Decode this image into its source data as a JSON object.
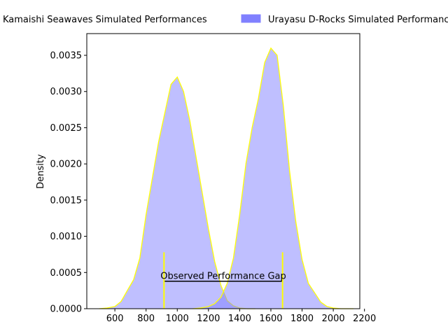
{
  "chart_data": {
    "type": "area",
    "title": "",
    "xlabel": "",
    "ylabel": "Density",
    "xlim": [
      420,
      2170
    ],
    "ylim": [
      0,
      0.0038
    ],
    "x_ticks": [
      600,
      800,
      1000,
      1200,
      1400,
      1600,
      1800,
      2000,
      2200
    ],
    "x_tick_labels": [
      "600",
      "800",
      "1000",
      "1200",
      "1400",
      "1600",
      "1800",
      "2000",
      "2200"
    ],
    "y_ticks": [
      0,
      0.0005,
      0.001,
      0.0015,
      0.002,
      0.0025,
      0.003,
      0.0035
    ],
    "y_tick_labels": [
      "0.0000",
      "0.0005",
      "0.0010",
      "0.0015",
      "0.0020",
      "0.0025",
      "0.0030",
      "0.0035"
    ],
    "grid": false,
    "legend_position": "top",
    "fill_color": "#8080ff",
    "line_color": "#ffff00",
    "series": [
      {
        "name": "Kamaishi Seawaves Simulated Performances",
        "x": [
          500,
          550,
          600,
          640,
          680,
          720,
          760,
          800,
          840,
          880,
          920,
          960,
          1000,
          1040,
          1080,
          1120,
          1160,
          1200,
          1240,
          1280,
          1320,
          1360,
          1400,
          1450,
          1500
        ],
        "y": [
          0.0,
          1e-05,
          3e-05,
          0.0001,
          0.00025,
          0.0004,
          0.0007,
          0.0013,
          0.0018,
          0.0023,
          0.0027,
          0.0031,
          0.0032,
          0.003,
          0.0026,
          0.0021,
          0.0016,
          0.0011,
          0.00065,
          0.00032,
          0.00011,
          4e-05,
          1e-05,
          0.0,
          0.0
        ]
      },
      {
        "name": "Urayasu D-Rocks Simulated Performances",
        "x": [
          1100,
          1150,
          1200,
          1240,
          1280,
          1320,
          1360,
          1400,
          1440,
          1480,
          1520,
          1560,
          1600,
          1640,
          1680,
          1720,
          1760,
          1800,
          1840,
          1880,
          1920,
          1960,
          2000,
          2050,
          2100,
          2130
        ],
        "y": [
          0.0,
          1e-05,
          3e-05,
          7e-05,
          0.00016,
          0.00035,
          0.0007,
          0.0013,
          0.002,
          0.0025,
          0.0029,
          0.0034,
          0.0036,
          0.0035,
          0.0028,
          0.0019,
          0.0012,
          0.00068,
          0.00035,
          0.00022,
          9e-05,
          3e-05,
          1e-05,
          0.0,
          0.0,
          0.0
        ]
      }
    ],
    "annotation": {
      "label": "Observed Performance Gap",
      "x_start": 915,
      "x_end": 1675,
      "y": 0.00038,
      "marker_height": 0.00078
    }
  }
}
